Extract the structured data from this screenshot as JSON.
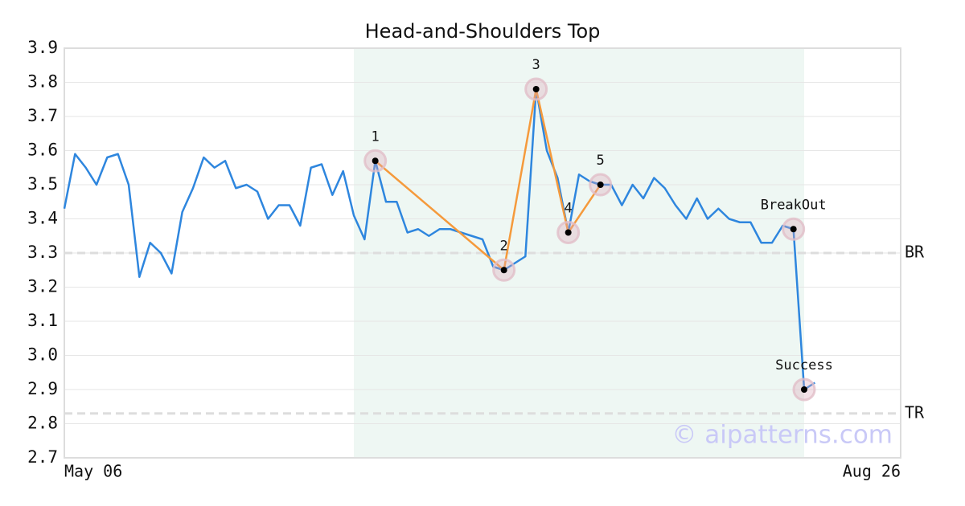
{
  "chart_data": {
    "type": "line",
    "title": "Head-and-Shoulders Top",
    "x": [
      0,
      1,
      2,
      3,
      4,
      5,
      6,
      7,
      8,
      9,
      10,
      11,
      12,
      13,
      14,
      15,
      16,
      17,
      18,
      19,
      20,
      21,
      22,
      23,
      24,
      25,
      26,
      27,
      28,
      29,
      30,
      31,
      32,
      33,
      34,
      35,
      36,
      37,
      38,
      39,
      40,
      41,
      42,
      43,
      44,
      45,
      46,
      47,
      48,
      49,
      50,
      51,
      52,
      53,
      54,
      55,
      56,
      57,
      58,
      59,
      60,
      61,
      62,
      63,
      64,
      65,
      66,
      67,
      68,
      69,
      70
    ],
    "values": [
      3.43,
      3.59,
      3.55,
      3.5,
      3.58,
      3.59,
      3.5,
      3.23,
      3.33,
      3.3,
      3.24,
      3.42,
      3.49,
      3.58,
      3.55,
      3.57,
      3.49,
      3.5,
      3.48,
      3.4,
      3.44,
      3.44,
      3.38,
      3.55,
      3.56,
      3.47,
      3.54,
      3.41,
      3.34,
      3.57,
      3.45,
      3.45,
      3.36,
      3.37,
      3.35,
      3.37,
      3.37,
      3.36,
      3.35,
      3.34,
      3.26,
      3.25,
      3.27,
      3.29,
      3.78,
      3.6,
      3.52,
      3.36,
      3.53,
      3.51,
      3.5,
      3.5,
      3.44,
      3.5,
      3.46,
      3.52,
      3.49,
      3.44,
      3.4,
      3.46,
      3.4,
      3.43,
      3.4,
      3.39,
      3.39,
      3.33,
      3.33,
      3.38,
      3.37,
      2.9,
      2.92
    ],
    "color": "#2e86de",
    "xlim": [
      0,
      78
    ],
    "xticks": [
      {
        "value": 0,
        "label": "May 06"
      },
      {
        "value": 78,
        "label": "Aug 26"
      }
    ],
    "ylim": [
      2.7,
      3.9
    ],
    "yticks": [
      2.7,
      2.8,
      2.9,
      {
        "value": 3,
        "label": "3.0"
      },
      3.1,
      3.2,
      3.3,
      3.4,
      3.5,
      3.6,
      3.7,
      3.8,
      3.9
    ],
    "grid": true,
    "shade_x": [
      27,
      69
    ],
    "shade_color": "#eef7f3",
    "pattern": {
      "color": "#f59a3c",
      "points": [
        {
          "label": "1",
          "x": 29,
          "value": 3.57
        },
        {
          "label": "2",
          "x": 41,
          "value": 3.25
        },
        {
          "label": "3",
          "x": 44,
          "value": 3.78
        },
        {
          "label": "4",
          "x": 47,
          "value": 3.36
        },
        {
          "label": "5",
          "x": 50,
          "value": 3.5
        }
      ]
    },
    "signals": [
      {
        "label": "BreakOut",
        "x": 68,
        "value": 3.37
      },
      {
        "label": "Success",
        "x": 69,
        "value": 2.9
      }
    ],
    "levels": [
      {
        "label": "BR",
        "value": 3.3
      },
      {
        "label": "TR",
        "value": 2.83
      }
    ],
    "watermark": "© aipatterns.com"
  }
}
